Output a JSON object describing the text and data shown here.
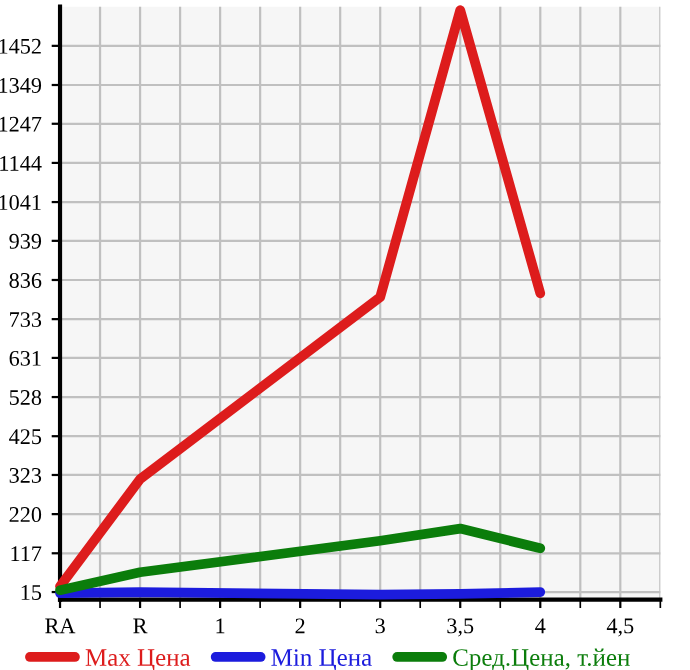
{
  "chart_data": {
    "type": "line",
    "categories": [
      "RA",
      "R",
      "1",
      "2",
      "3",
      "3,5",
      "4",
      "4,5"
    ],
    "series": [
      {
        "name": "Max Цена",
        "color": "#dd1c1c",
        "values": [
          30,
          312,
          null,
          null,
          791,
          1546,
          801,
          null
        ]
      },
      {
        "name": "Min Цена",
        "color": "#1c1cdd",
        "values": [
          12,
          15,
          null,
          null,
          8,
          10,
          15,
          null
        ]
      },
      {
        "name": "Сред.Цена, т.йен",
        "color": "#0b7d0b",
        "values": [
          20,
          67,
          null,
          null,
          150,
          182,
          130,
          null
        ]
      }
    ],
    "ylim": [
      -5,
      1555
    ],
    "yticks": [
      15,
      117,
      220,
      323,
      425,
      528,
      631,
      733,
      836,
      939,
      1041,
      1144,
      1247,
      1349,
      1452
    ],
    "grid": true,
    "legend": "bottom",
    "marker": "none",
    "line_style": "solid"
  }
}
